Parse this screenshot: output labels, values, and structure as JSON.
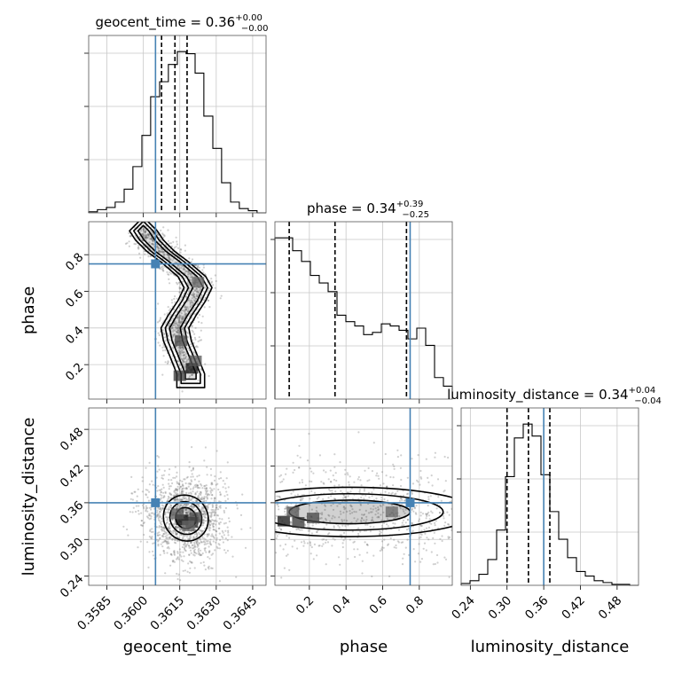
{
  "chart_data": {
    "type": "corner",
    "parameters": [
      "geocent_time",
      "phase",
      "luminosity_distance"
    ],
    "truth_color": "#4682b4",
    "titles": [
      {
        "param": "geocent_time",
        "prefix": "geocent_time = 0.36",
        "sup": "+0.00",
        "sub": "−0.00"
      },
      {
        "param": "phase",
        "prefix": "phase = 0.34",
        "sup": "+0.39",
        "sub": "−0.25"
      },
      {
        "param": "luminosity_distance",
        "prefix": "luminosity_distance = 0.34",
        "sup": "+0.04",
        "sub": "−0.04"
      }
    ],
    "axes": {
      "geocent_time": {
        "label": "geocent_time",
        "range": [
          0.35775,
          0.36505
        ],
        "ticks": [
          0.3585,
          0.36,
          0.3615,
          0.363,
          0.3645
        ],
        "tick_labels": [
          "0.3585",
          "0.3600",
          "0.3615",
          "0.3630",
          "0.3645"
        ],
        "truth": 0.3605,
        "quantiles": [
          0.36075,
          0.3613,
          0.3618
        ]
      },
      "phase": {
        "label": "phase",
        "range": [
          0.012,
          0.98
        ],
        "ticks": [
          0.2,
          0.4,
          0.6,
          0.8
        ],
        "tick_labels": [
          "0.2",
          "0.4",
          "0.6",
          "0.8"
        ],
        "truth": 0.75,
        "quantiles": [
          0.09,
          0.34,
          0.73
        ]
      },
      "luminosity_distance": {
        "label": "luminosity_distance",
        "range": [
          0.225,
          0.515
        ],
        "ticks": [
          0.24,
          0.3,
          0.36,
          0.42,
          0.48
        ],
        "tick_labels": [
          "0.24",
          "0.30",
          "0.36",
          "0.42",
          "0.48"
        ],
        "truth": 0.36,
        "quantiles": [
          0.3,
          0.335,
          0.37
        ]
      }
    },
    "histograms": {
      "geocent_time": {
        "edges": [
          0.35775,
          0.35811,
          0.35848,
          0.35884,
          0.35921,
          0.35957,
          0.35994,
          0.3603,
          0.36067,
          0.36103,
          0.3614,
          0.36176,
          0.36213,
          0.36249,
          0.36286,
          0.36322,
          0.36359,
          0.36395,
          0.36432,
          0.36468,
          0.36505
        ],
        "counts": [
          1,
          3,
          5,
          10,
          22,
          43,
          72,
          108,
          122,
          138,
          150,
          148,
          130,
          90,
          60,
          28,
          10,
          4,
          2,
          0
        ]
      },
      "phase": {
        "edges": [
          0.012,
          0.0604,
          0.1088,
          0.1572,
          0.2056,
          0.254,
          0.3024,
          0.3508,
          0.3992,
          0.4476,
          0.496,
          0.5444,
          0.5928,
          0.6412,
          0.6896,
          0.738,
          0.7864,
          0.8348,
          0.8832,
          0.9316,
          0.98
        ],
        "counts": [
          150,
          150,
          138,
          128,
          115,
          108,
          100,
          78,
          72,
          68,
          60,
          62,
          70,
          68,
          64,
          56,
          66,
          50,
          20,
          12
        ]
      },
      "luminosity_distance": {
        "edges": [
          0.225,
          0.2395,
          0.254,
          0.2685,
          0.283,
          0.2975,
          0.312,
          0.3265,
          0.341,
          0.3555,
          0.37,
          0.3845,
          0.399,
          0.4135,
          0.428,
          0.4425,
          0.457,
          0.4715,
          0.486,
          0.5005,
          0.515
        ],
        "counts": [
          2,
          5,
          12,
          28,
          60,
          118,
          160,
          175,
          162,
          120,
          80,
          50,
          30,
          15,
          10,
          5,
          3,
          1,
          1,
          0
        ]
      }
    },
    "pairs": [
      {
        "x": "geocent_time",
        "y": "phase",
        "ridge": [
          [
            0.15,
            0.36195
          ],
          [
            0.25,
            0.36165
          ],
          [
            0.33,
            0.3614
          ],
          [
            0.4,
            0.3613
          ],
          [
            0.47,
            0.3616
          ],
          [
            0.55,
            0.362
          ],
          [
            0.62,
            0.36225
          ],
          [
            0.68,
            0.362
          ],
          [
            0.76,
            0.3613
          ],
          [
            0.82,
            0.3607
          ],
          [
            0.88,
            0.36025
          ],
          [
            0.93,
            0.36
          ]
        ],
        "ridge_width": 0.0004,
        "levels": [
          1.0,
          1.8,
          2.6
        ],
        "dense": [
          [
            0.362,
            0.18
          ],
          [
            0.3615,
            0.14
          ],
          [
            0.36215,
            0.22
          ],
          [
            0.36155,
            0.33
          ],
          [
            0.36225,
            0.65
          ]
        ]
      },
      {
        "x": "geocent_time",
        "y": "luminosity_distance",
        "center": [
          0.36175,
          0.335
        ],
        "radii": [
          0.00075,
          0.032
        ],
        "rotation": -35,
        "levels": [
          0.55,
          0.85,
          1.2
        ],
        "dense": [
          [
            0.3616,
            0.332
          ],
          [
            0.362,
            0.328
          ],
          [
            0.3614,
            0.342
          ],
          [
            0.36215,
            0.336
          ],
          [
            0.36185,
            0.322
          ]
        ]
      },
      {
        "x": "phase",
        "y": "luminosity_distance",
        "center": [
          0.42,
          0.345
        ],
        "radii": [
          0.6,
          0.035
        ],
        "rotation": 0,
        "levels": [
          0.55,
          0.85,
          1.15
        ],
        "dense": [
          [
            0.06,
            0.33
          ],
          [
            0.14,
            0.328
          ],
          [
            0.11,
            0.345
          ],
          [
            0.22,
            0.335
          ],
          [
            0.65,
            0.345
          ]
        ]
      }
    ]
  }
}
